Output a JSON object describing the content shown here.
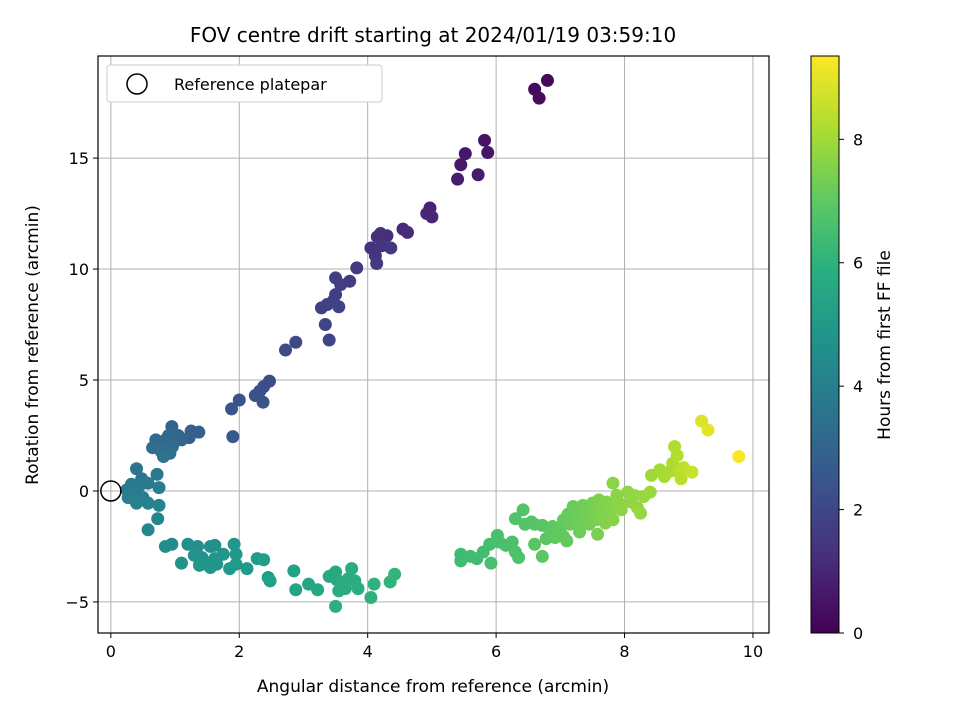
{
  "chart_data": {
    "type": "scatter",
    "title": "FOV centre drift starting at 2024/01/19 03:59:10",
    "xlabel": "Angular distance from reference (arcmin)",
    "ylabel": "Rotation from reference (arcmin)",
    "xlim": [
      -0.2,
      10.25
    ],
    "ylim": [
      -6.4,
      19.6
    ],
    "xticks": [
      0,
      2,
      4,
      6,
      8,
      10
    ],
    "yticks": [
      -5,
      0,
      5,
      10,
      15
    ],
    "grid": true,
    "legend": {
      "placement": "top-left",
      "entries": [
        "Reference platepar"
      ]
    },
    "reference_point": {
      "x": 0,
      "y": 0
    },
    "colorbar": {
      "label": "Hours from first FF file",
      "range": [
        0,
        9.35
      ],
      "ticks": [
        0,
        2,
        4,
        6,
        8
      ],
      "colormap": "viridis"
    },
    "points": [
      {
        "x": 6.8,
        "y": 18.5,
        "h": 0.2
      },
      {
        "x": 6.6,
        "y": 18.1,
        "h": 0.25
      },
      {
        "x": 6.67,
        "y": 17.7,
        "h": 0.3
      },
      {
        "x": 5.82,
        "y": 15.8,
        "h": 0.5
      },
      {
        "x": 5.87,
        "y": 15.25,
        "h": 0.55
      },
      {
        "x": 5.52,
        "y": 15.2,
        "h": 0.6
      },
      {
        "x": 5.45,
        "y": 14.7,
        "h": 0.65
      },
      {
        "x": 5.72,
        "y": 14.25,
        "h": 0.7
      },
      {
        "x": 5.4,
        "y": 14.05,
        "h": 0.75
      },
      {
        "x": 4.97,
        "y": 12.75,
        "h": 0.9
      },
      {
        "x": 4.92,
        "y": 12.5,
        "h": 0.95
      },
      {
        "x": 5.0,
        "y": 12.35,
        "h": 1.0
      },
      {
        "x": 4.55,
        "y": 11.8,
        "h": 1.1
      },
      {
        "x": 4.62,
        "y": 11.65,
        "h": 1.15
      },
      {
        "x": 4.3,
        "y": 11.5,
        "h": 1.2
      },
      {
        "x": 4.2,
        "y": 11.6,
        "h": 1.25
      },
      {
        "x": 4.15,
        "y": 11.45,
        "h": 1.3
      },
      {
        "x": 4.05,
        "y": 10.95,
        "h": 1.35
      },
      {
        "x": 4.22,
        "y": 11.05,
        "h": 1.4
      },
      {
        "x": 4.12,
        "y": 10.6,
        "h": 1.45
      },
      {
        "x": 4.36,
        "y": 10.95,
        "h": 1.5
      },
      {
        "x": 4.14,
        "y": 10.25,
        "h": 1.55
      },
      {
        "x": 3.83,
        "y": 10.05,
        "h": 1.6
      },
      {
        "x": 3.72,
        "y": 9.45,
        "h": 1.65
      },
      {
        "x": 3.5,
        "y": 9.6,
        "h": 1.7
      },
      {
        "x": 3.58,
        "y": 9.3,
        "h": 1.72
      },
      {
        "x": 3.5,
        "y": 8.85,
        "h": 1.75
      },
      {
        "x": 3.46,
        "y": 8.55,
        "h": 1.78
      },
      {
        "x": 3.37,
        "y": 8.4,
        "h": 1.8
      },
      {
        "x": 3.28,
        "y": 8.25,
        "h": 1.83
      },
      {
        "x": 3.55,
        "y": 8.3,
        "h": 1.85
      },
      {
        "x": 3.34,
        "y": 7.5,
        "h": 1.9
      },
      {
        "x": 3.4,
        "y": 6.8,
        "h": 1.95
      },
      {
        "x": 2.88,
        "y": 6.7,
        "h": 2.05
      },
      {
        "x": 2.72,
        "y": 6.35,
        "h": 2.1
      },
      {
        "x": 2.47,
        "y": 4.95,
        "h": 2.2
      },
      {
        "x": 2.38,
        "y": 4.7,
        "h": 2.25
      },
      {
        "x": 2.32,
        "y": 4.5,
        "h": 2.3
      },
      {
        "x": 2.25,
        "y": 4.3,
        "h": 2.32
      },
      {
        "x": 2.37,
        "y": 4.0,
        "h": 2.35
      },
      {
        "x": 2.0,
        "y": 4.1,
        "h": 2.4
      },
      {
        "x": 1.88,
        "y": 3.7,
        "h": 2.45
      },
      {
        "x": 1.9,
        "y": 2.45,
        "h": 2.6
      },
      {
        "x": 1.25,
        "y": 2.7,
        "h": 2.8
      },
      {
        "x": 1.37,
        "y": 2.65,
        "h": 2.85
      },
      {
        "x": 1.22,
        "y": 2.4,
        "h": 2.9
      },
      {
        "x": 0.95,
        "y": 2.9,
        "h": 2.95
      },
      {
        "x": 1.05,
        "y": 2.5,
        "h": 3.0
      },
      {
        "x": 1.1,
        "y": 2.3,
        "h": 3.05
      },
      {
        "x": 0.9,
        "y": 2.5,
        "h": 3.1
      },
      {
        "x": 0.85,
        "y": 2.3,
        "h": 3.15
      },
      {
        "x": 0.7,
        "y": 2.3,
        "h": 3.2
      },
      {
        "x": 0.82,
        "y": 2.1,
        "h": 3.25
      },
      {
        "x": 0.96,
        "y": 2.0,
        "h": 3.3
      },
      {
        "x": 0.65,
        "y": 1.95,
        "h": 3.35
      },
      {
        "x": 0.78,
        "y": 1.8,
        "h": 3.4
      },
      {
        "x": 0.92,
        "y": 1.7,
        "h": 3.45
      },
      {
        "x": 0.82,
        "y": 1.55,
        "h": 3.5
      },
      {
        "x": 0.4,
        "y": 1.0,
        "h": 3.6
      },
      {
        "x": 0.48,
        "y": 0.55,
        "h": 3.65
      },
      {
        "x": 0.72,
        "y": 0.75,
        "h": 3.7
      },
      {
        "x": 0.32,
        "y": 0.3,
        "h": 3.75
      },
      {
        "x": 0.45,
        "y": 0.25,
        "h": 3.78
      },
      {
        "x": 0.58,
        "y": 0.35,
        "h": 3.8
      },
      {
        "x": 0.25,
        "y": 0.05,
        "h": 3.85
      },
      {
        "x": 0.38,
        "y": -0.15,
        "h": 3.9
      },
      {
        "x": 0.27,
        "y": -0.3,
        "h": 3.95
      },
      {
        "x": 0.5,
        "y": -0.3,
        "h": 4.0
      },
      {
        "x": 0.75,
        "y": 0.15,
        "h": 4.05
      },
      {
        "x": 0.4,
        "y": -0.55,
        "h": 4.1
      },
      {
        "x": 0.58,
        "y": -0.55,
        "h": 4.15
      },
      {
        "x": 0.75,
        "y": -0.65,
        "h": 4.2
      },
      {
        "x": 0.73,
        "y": -1.25,
        "h": 4.25
      },
      {
        "x": 0.58,
        "y": -1.75,
        "h": 4.3
      },
      {
        "x": 0.85,
        "y": -2.5,
        "h": 4.5
      },
      {
        "x": 0.95,
        "y": -2.4,
        "h": 4.55
      },
      {
        "x": 1.2,
        "y": -2.4,
        "h": 4.6
      },
      {
        "x": 1.35,
        "y": -2.5,
        "h": 4.65
      },
      {
        "x": 1.55,
        "y": -2.5,
        "h": 4.7
      },
      {
        "x": 1.62,
        "y": -2.45,
        "h": 4.72
      },
      {
        "x": 1.1,
        "y": -3.25,
        "h": 4.75
      },
      {
        "x": 1.3,
        "y": -2.9,
        "h": 4.78
      },
      {
        "x": 1.42,
        "y": -3.0,
        "h": 4.8
      },
      {
        "x": 1.52,
        "y": -3.35,
        "h": 4.82
      },
      {
        "x": 1.62,
        "y": -3.05,
        "h": 4.85
      },
      {
        "x": 1.75,
        "y": -2.85,
        "h": 4.88
      },
      {
        "x": 1.65,
        "y": -3.3,
        "h": 4.9
      },
      {
        "x": 1.55,
        "y": -3.45,
        "h": 4.92
      },
      {
        "x": 1.38,
        "y": -3.35,
        "h": 4.95
      },
      {
        "x": 1.92,
        "y": -2.4,
        "h": 5.0
      },
      {
        "x": 1.95,
        "y": -2.85,
        "h": 5.02
      },
      {
        "x": 1.95,
        "y": -3.3,
        "h": 5.05
      },
      {
        "x": 1.85,
        "y": -3.5,
        "h": 5.08
      },
      {
        "x": 2.12,
        "y": -3.5,
        "h": 5.1
      },
      {
        "x": 2.28,
        "y": -3.05,
        "h": 5.15
      },
      {
        "x": 2.38,
        "y": -3.1,
        "h": 5.2
      },
      {
        "x": 2.45,
        "y": -3.9,
        "h": 5.25
      },
      {
        "x": 2.48,
        "y": -4.05,
        "h": 5.3
      },
      {
        "x": 2.85,
        "y": -3.6,
        "h": 5.4
      },
      {
        "x": 2.88,
        "y": -4.45,
        "h": 5.45
      },
      {
        "x": 3.08,
        "y": -4.2,
        "h": 5.5
      },
      {
        "x": 3.22,
        "y": -4.45,
        "h": 5.55
      },
      {
        "x": 3.4,
        "y": -3.85,
        "h": 5.6
      },
      {
        "x": 3.5,
        "y": -3.65,
        "h": 5.62
      },
      {
        "x": 3.52,
        "y": -4.0,
        "h": 5.65
      },
      {
        "x": 3.6,
        "y": -4.15,
        "h": 5.68
      },
      {
        "x": 3.65,
        "y": -4.4,
        "h": 5.7
      },
      {
        "x": 3.55,
        "y": -4.5,
        "h": 5.72
      },
      {
        "x": 3.7,
        "y": -3.95,
        "h": 5.75
      },
      {
        "x": 3.75,
        "y": -3.5,
        "h": 5.78
      },
      {
        "x": 3.8,
        "y": -4.05,
        "h": 5.8
      },
      {
        "x": 3.85,
        "y": -4.4,
        "h": 5.82
      },
      {
        "x": 3.5,
        "y": -5.2,
        "h": 5.85
      },
      {
        "x": 4.05,
        "y": -4.8,
        "h": 5.95
      },
      {
        "x": 4.1,
        "y": -4.2,
        "h": 6.0
      },
      {
        "x": 4.35,
        "y": -4.1,
        "h": 6.05
      },
      {
        "x": 4.42,
        "y": -3.75,
        "h": 6.1
      },
      {
        "x": 5.45,
        "y": -2.85,
        "h": 6.4
      },
      {
        "x": 5.45,
        "y": -3.15,
        "h": 6.42
      },
      {
        "x": 5.6,
        "y": -2.95,
        "h": 6.45
      },
      {
        "x": 5.7,
        "y": -3.05,
        "h": 6.48
      },
      {
        "x": 5.8,
        "y": -2.75,
        "h": 6.5
      },
      {
        "x": 5.9,
        "y": -2.4,
        "h": 6.55
      },
      {
        "x": 5.92,
        "y": -3.25,
        "h": 6.58
      },
      {
        "x": 6.02,
        "y": -2.0,
        "h": 6.6
      },
      {
        "x": 6.05,
        "y": -2.3,
        "h": 6.62
      },
      {
        "x": 6.15,
        "y": -2.45,
        "h": 6.65
      },
      {
        "x": 6.25,
        "y": -2.3,
        "h": 6.68
      },
      {
        "x": 6.3,
        "y": -2.75,
        "h": 6.7
      },
      {
        "x": 6.35,
        "y": -3.0,
        "h": 6.72
      },
      {
        "x": 6.3,
        "y": -1.25,
        "h": 6.75
      },
      {
        "x": 6.42,
        "y": -0.85,
        "h": 6.78
      },
      {
        "x": 6.45,
        "y": -1.5,
        "h": 6.8
      },
      {
        "x": 6.55,
        "y": -1.4,
        "h": 6.82
      },
      {
        "x": 6.6,
        "y": -1.5,
        "h": 6.85
      },
      {
        "x": 6.6,
        "y": -2.4,
        "h": 6.88
      },
      {
        "x": 6.72,
        "y": -1.55,
        "h": 6.9
      },
      {
        "x": 6.72,
        "y": -2.95,
        "h": 6.92
      },
      {
        "x": 6.78,
        "y": -2.15,
        "h": 6.95
      },
      {
        "x": 6.85,
        "y": -1.9,
        "h": 6.98
      },
      {
        "x": 6.88,
        "y": -1.6,
        "h": 7.0
      },
      {
        "x": 6.92,
        "y": -2.1,
        "h": 7.02
      },
      {
        "x": 7.0,
        "y": -1.7,
        "h": 7.05
      },
      {
        "x": 7.05,
        "y": -2.05,
        "h": 7.08
      },
      {
        "x": 7.1,
        "y": -2.25,
        "h": 7.1
      },
      {
        "x": 7.05,
        "y": -1.3,
        "h": 7.12
      },
      {
        "x": 7.12,
        "y": -1.05,
        "h": 7.15
      },
      {
        "x": 7.15,
        "y": -1.5,
        "h": 7.18
      },
      {
        "x": 7.2,
        "y": -0.7,
        "h": 7.2
      },
      {
        "x": 7.25,
        "y": -1.1,
        "h": 7.22
      },
      {
        "x": 7.28,
        "y": -1.4,
        "h": 7.25
      },
      {
        "x": 7.3,
        "y": -1.85,
        "h": 7.28
      },
      {
        "x": 7.35,
        "y": -0.65,
        "h": 7.3
      },
      {
        "x": 7.4,
        "y": -1.15,
        "h": 7.32
      },
      {
        "x": 7.42,
        "y": -0.85,
        "h": 7.35
      },
      {
        "x": 7.45,
        "y": -1.5,
        "h": 7.38
      },
      {
        "x": 7.5,
        "y": -0.55,
        "h": 7.4
      },
      {
        "x": 7.52,
        "y": -1.0,
        "h": 7.42
      },
      {
        "x": 7.55,
        "y": -1.3,
        "h": 7.45
      },
      {
        "x": 7.58,
        "y": -1.95,
        "h": 7.48
      },
      {
        "x": 7.6,
        "y": -0.4,
        "h": 7.5
      },
      {
        "x": 7.62,
        "y": -0.75,
        "h": 7.52
      },
      {
        "x": 7.65,
        "y": -1.15,
        "h": 7.55
      },
      {
        "x": 7.7,
        "y": -1.45,
        "h": 7.58
      },
      {
        "x": 7.72,
        "y": -0.5,
        "h": 7.6
      },
      {
        "x": 7.78,
        "y": -0.85,
        "h": 7.62
      },
      {
        "x": 7.82,
        "y": -1.3,
        "h": 7.65
      },
      {
        "x": 7.82,
        "y": 0.35,
        "h": 7.68
      },
      {
        "x": 7.88,
        "y": -0.2,
        "h": 7.7
      },
      {
        "x": 7.92,
        "y": -0.55,
        "h": 7.72
      },
      {
        "x": 7.95,
        "y": -0.85,
        "h": 7.75
      },
      {
        "x": 8.05,
        "y": -0.05,
        "h": 7.78
      },
      {
        "x": 8.1,
        "y": -0.5,
        "h": 7.8
      },
      {
        "x": 8.15,
        "y": -0.2,
        "h": 7.82
      },
      {
        "x": 8.2,
        "y": -0.75,
        "h": 7.85
      },
      {
        "x": 8.25,
        "y": -1.0,
        "h": 7.88
      },
      {
        "x": 8.3,
        "y": -0.25,
        "h": 7.9
      },
      {
        "x": 8.4,
        "y": -0.05,
        "h": 7.95
      },
      {
        "x": 8.42,
        "y": 0.7,
        "h": 8.0
      },
      {
        "x": 8.55,
        "y": 0.95,
        "h": 8.05
      },
      {
        "x": 8.62,
        "y": 0.65,
        "h": 8.1
      },
      {
        "x": 8.72,
        "y": 0.9,
        "h": 8.15
      },
      {
        "x": 8.75,
        "y": 1.25,
        "h": 8.2
      },
      {
        "x": 8.78,
        "y": 2.0,
        "h": 8.25
      },
      {
        "x": 8.82,
        "y": 1.6,
        "h": 8.3
      },
      {
        "x": 8.85,
        "y": 0.85,
        "h": 8.35
      },
      {
        "x": 8.88,
        "y": 0.55,
        "h": 8.4
      },
      {
        "x": 8.92,
        "y": 1.05,
        "h": 8.45
      },
      {
        "x": 9.05,
        "y": 0.85,
        "h": 8.6
      },
      {
        "x": 9.2,
        "y": 3.15,
        "h": 8.9
      },
      {
        "x": 9.3,
        "y": 2.75,
        "h": 9.0
      },
      {
        "x": 9.78,
        "y": 1.55,
        "h": 9.3
      }
    ]
  }
}
